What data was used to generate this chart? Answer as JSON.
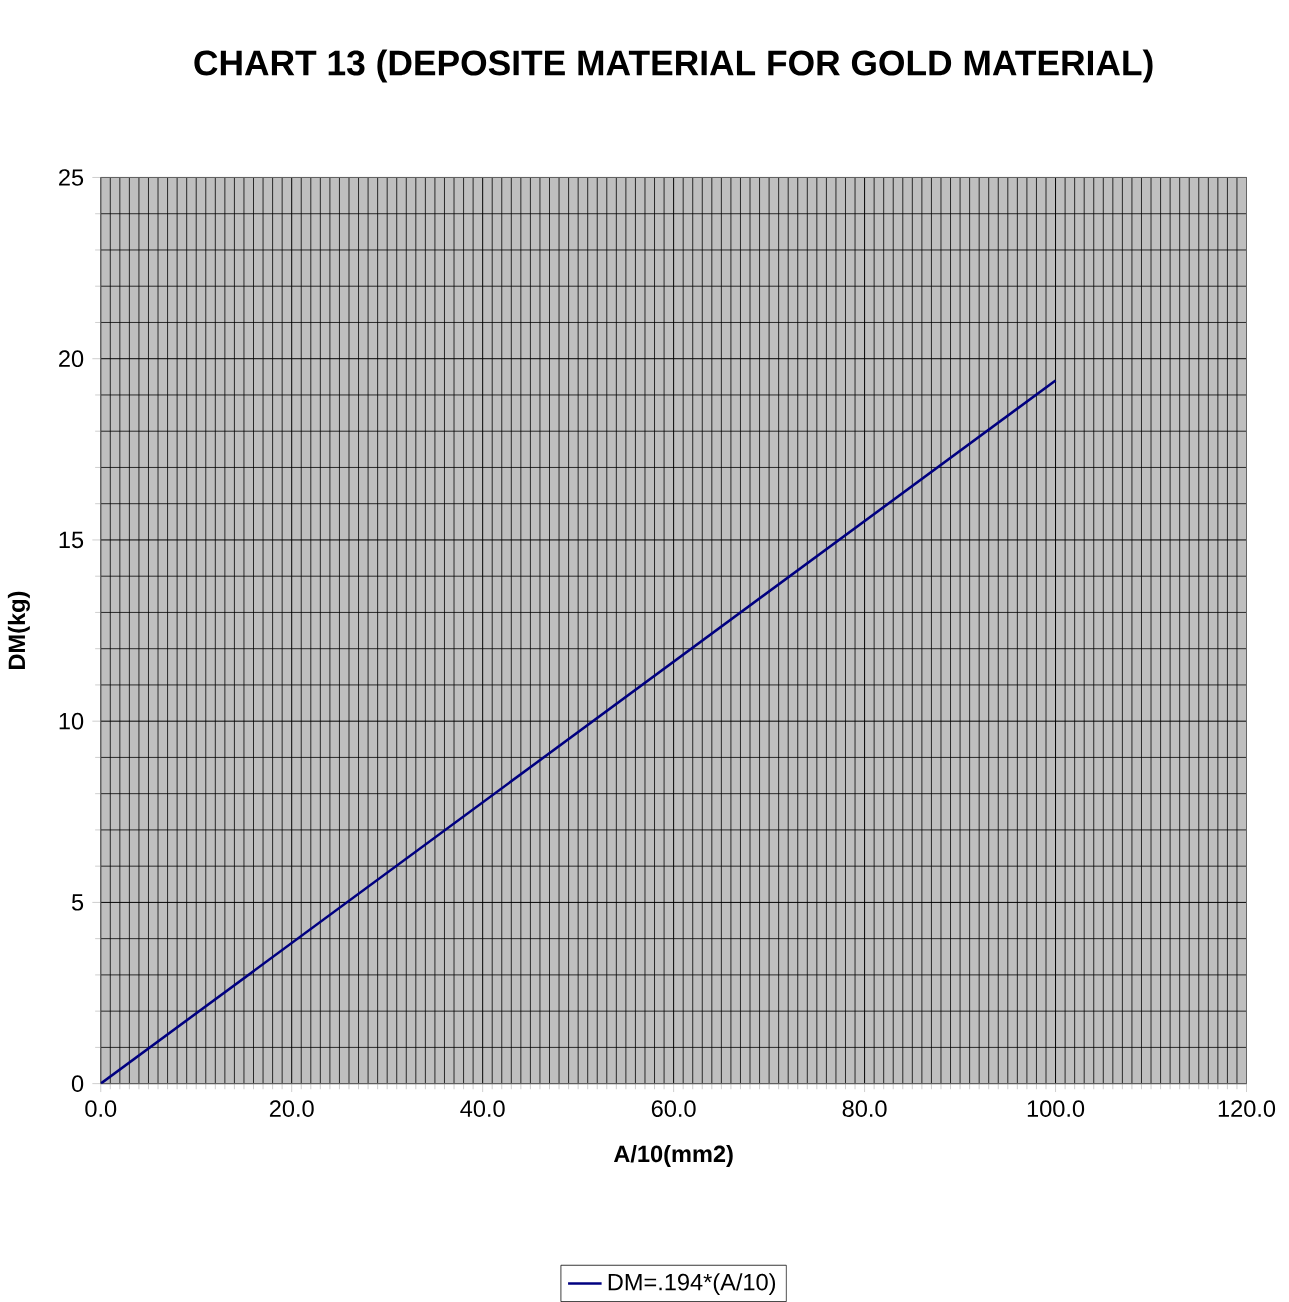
{
  "chart_data": {
    "type": "line",
    "title": "CHART 13 (DEPOSITE MATERIAL FOR GOLD MATERIAL)",
    "xlabel": "A/10(mm2)",
    "ylabel": "DM(kg)",
    "x": [
      0,
      100
    ],
    "series": [
      {
        "name": "DM=.194*(A/10)",
        "color": "#000080",
        "values": [
          0,
          19.4
        ]
      }
    ],
    "xlim": [
      0,
      120
    ],
    "xticks": [
      {
        "value": 0,
        "label": "0.0"
      },
      {
        "value": 20,
        "label": "20.0"
      },
      {
        "value": 40,
        "label": "40.0"
      },
      {
        "value": 60,
        "label": "60.0"
      },
      {
        "value": 80,
        "label": "80.0"
      },
      {
        "value": 100,
        "label": "100.0"
      },
      {
        "value": 120,
        "label": "120.0"
      }
    ],
    "ylim": [
      0,
      25
    ],
    "yticks": [
      0,
      5,
      10,
      15,
      20,
      25
    ],
    "grid": true,
    "legend": "bottom",
    "marker": "none",
    "line_style": "solid"
  }
}
